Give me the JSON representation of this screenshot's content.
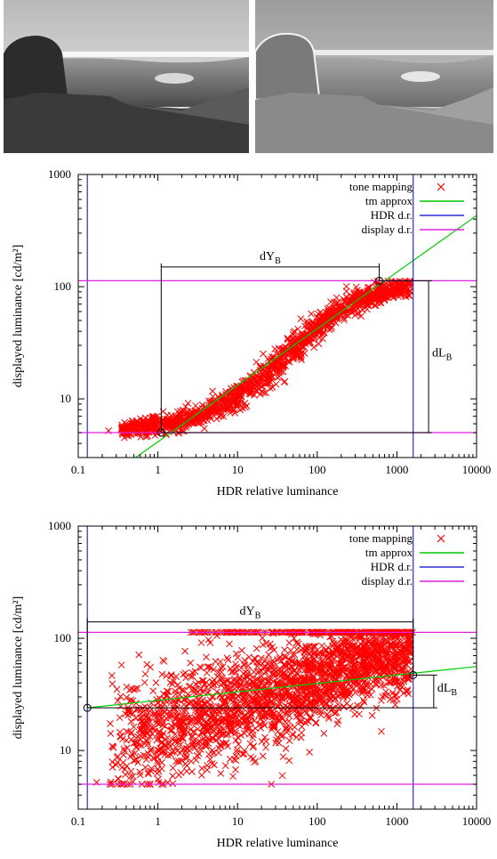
{
  "photos": [
    {
      "name": "original-photo",
      "tone": "natural"
    },
    {
      "name": "tone-mapped-photo",
      "tone": "local-contrast"
    }
  ],
  "colors": {
    "tone_mapping": "#ff0000",
    "tm_approx": "#00cc00",
    "hdr_dr": "#2b2bd6",
    "display_dr": "#e020e0",
    "annotation": "#000000"
  },
  "chart_data": [
    {
      "type": "scatter",
      "xscale": "log",
      "yscale": "log",
      "xlim": [
        0.1,
        10000
      ],
      "ylim": [
        3,
        1000
      ],
      "xlabel": "HDR relative luminance",
      "ylabel": "displayed luminance [cd/m²]",
      "xticks": [
        0.1,
        1,
        10,
        100,
        1000,
        10000
      ],
      "xtick_labels": [
        "0.1",
        "1",
        "10",
        "100",
        "1000",
        "10000"
      ],
      "yticks": [
        10,
        100,
        1000
      ],
      "ytick_labels": [
        "10",
        "100",
        "1000"
      ],
      "legend_position": "top-right",
      "legend": [
        "tone mapping",
        "tm approx",
        "HDR d.r.",
        "display d.r."
      ],
      "series": [
        {
          "name": "tone mapping",
          "shape": "sigmoid",
          "x_from": 0.35,
          "x_to": 1500,
          "y_low": 5.2,
          "y_high": 112,
          "mid_x": 40,
          "spread": 0.08,
          "outlier": [
            0.24,
            5.2
          ]
        },
        {
          "name": "tm approx",
          "line": [
            [
              0.1,
              1.3
            ],
            [
              10000,
              430
            ]
          ]
        },
        {
          "name": "HDR d.r.",
          "vlines": [
            0.13,
            1600
          ]
        },
        {
          "name": "display d.r.",
          "hlines": [
            5,
            113
          ]
        }
      ],
      "annotations": {
        "dY_label": "dY",
        "dY_sub": "B",
        "dY_span": [
          1.1,
          600
        ],
        "dL_label": "dL",
        "dL_sub": "B",
        "dL_span": [
          5,
          113
        ],
        "circles": [
          [
            1.1,
            5
          ],
          [
            600,
            113
          ]
        ]
      }
    },
    {
      "type": "scatter",
      "xscale": "log",
      "yscale": "log",
      "xlim": [
        0.1,
        10000
      ],
      "ylim": [
        3,
        1000
      ],
      "xlabel": "HDR relative luminance",
      "ylabel": "displayed luminance [cd/m²]",
      "xticks": [
        0.1,
        1,
        10,
        100,
        1000,
        10000
      ],
      "xtick_labels": [
        "0.1",
        "1",
        "10",
        "100",
        "1000",
        "10000"
      ],
      "yticks": [
        10,
        100,
        1000
      ],
      "ytick_labels": [
        "10",
        "100",
        "1000"
      ],
      "legend_position": "top-right",
      "legend": [
        "tone mapping",
        "tm approx",
        "HDR d.r.",
        "display d.r."
      ],
      "series": [
        {
          "name": "tone mapping",
          "shape": "cloud",
          "x_from": 0.25,
          "x_to": 1500,
          "y_low": 5,
          "y_high": 113,
          "outlier": [
            0.17,
            5.2
          ]
        },
        {
          "name": "tm approx",
          "line": [
            [
              0.13,
              24
            ],
            [
              10000,
              56
            ]
          ]
        },
        {
          "name": "HDR d.r.",
          "vlines": [
            0.13,
            1600
          ]
        },
        {
          "name": "display d.r.",
          "hlines": [
            5,
            113
          ]
        }
      ],
      "annotations": {
        "dY_label": "dY",
        "dY_sub": "B",
        "dY_span": [
          0.13,
          1600
        ],
        "dL_label": "dL",
        "dL_sub": "B",
        "dL_span": [
          24,
          47
        ],
        "circles": [
          [
            0.13,
            24
          ],
          [
            1600,
            47
          ]
        ]
      }
    }
  ]
}
